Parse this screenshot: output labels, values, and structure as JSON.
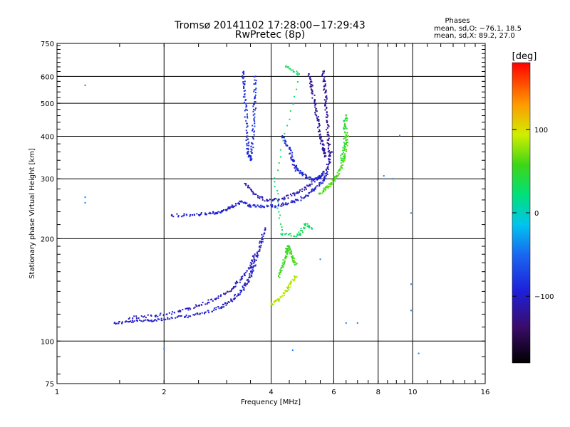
{
  "title_line1": "Tromsø 20141102 17:28:00−17:29:43",
  "title_line2": "RwPretec (8p)",
  "stats": {
    "heading": "Phases",
    "o_line": "mean, sd,O: −76.1, 18.5",
    "x_line": "mean, sd,X:  89.2, 27.0"
  },
  "colorbar": {
    "unit_label": "[deg]",
    "tick_labels": [
      "100",
      "0",
      "−100"
    ],
    "tick_values": [
      100,
      0,
      -100
    ],
    "range": [
      -180,
      180
    ]
  },
  "chart_data": {
    "type": "scatter",
    "xlabel": "Frequency [MHz]",
    "ylabel": "Stationary phase Virtual Height [km]",
    "x_scale": "log",
    "y_scale": "log",
    "xlim": [
      1,
      16
    ],
    "ylim": [
      75,
      750
    ],
    "x_ticks": [
      1,
      2,
      4,
      6,
      8,
      10,
      16
    ],
    "x_tick_labels": [
      "1",
      "2",
      "4",
      "6",
      "8",
      "10",
      "16"
    ],
    "y_ticks": [
      75,
      100,
      200,
      300,
      400,
      500,
      600,
      750
    ],
    "y_tick_labels": [
      "75",
      "100",
      "200",
      "300",
      "400",
      "500",
      "600",
      "750"
    ],
    "grid": true,
    "color_by": "phase [deg]",
    "traces": [
      {
        "points": [
          [
            1.45,
            113
          ],
          [
            1.6,
            114
          ],
          [
            1.8,
            115
          ],
          [
            2.0,
            116
          ],
          [
            2.3,
            118
          ],
          [
            2.6,
            121
          ],
          [
            2.9,
            126
          ],
          [
            3.1,
            132
          ],
          [
            3.3,
            140
          ],
          [
            3.45,
            150
          ],
          [
            3.55,
            162
          ],
          [
            3.65,
            178
          ],
          [
            3.75,
            195
          ],
          [
            3.85,
            215
          ]
        ],
        "phase": -100
      },
      {
        "points": [
          [
            1.6,
            117
          ],
          [
            1.9,
            119
          ],
          [
            2.2,
            122
          ],
          [
            2.5,
            127
          ],
          [
            2.8,
            133
          ],
          [
            3.1,
            142
          ],
          [
            3.3,
            152
          ],
          [
            3.5,
            165
          ],
          [
            3.6,
            180
          ]
        ],
        "phase": -105
      },
      {
        "points": [
          [
            2.1,
            234
          ],
          [
            2.4,
            235
          ],
          [
            2.7,
            237
          ],
          [
            2.9,
            240
          ],
          [
            3.1,
            248
          ],
          [
            3.3,
            258
          ],
          [
            3.5,
            250
          ],
          [
            3.8,
            248
          ],
          [
            4.2,
            250
          ],
          [
            4.6,
            256
          ],
          [
            5.0,
            266
          ],
          [
            5.3,
            280
          ],
          [
            5.6,
            296
          ],
          [
            5.8,
            320
          ]
        ],
        "phase": -95
      },
      {
        "points": [
          [
            3.4,
            290
          ],
          [
            3.6,
            270
          ],
          [
            3.9,
            258
          ],
          [
            4.3,
            262
          ],
          [
            4.7,
            272
          ],
          [
            5.1,
            286
          ],
          [
            5.5,
            305
          ],
          [
            5.8,
            330
          ],
          [
            5.9,
            360
          ]
        ],
        "phase": -110
      },
      {
        "points": [
          [
            3.35,
            620
          ],
          [
            3.35,
            560
          ],
          [
            3.4,
            480
          ],
          [
            3.42,
            400
          ],
          [
            3.45,
            360
          ],
          [
            3.5,
            340
          ],
          [
            3.55,
            380
          ],
          [
            3.58,
            450
          ],
          [
            3.6,
            520
          ],
          [
            3.62,
            600
          ]
        ],
        "phase": -85
      },
      {
        "points": [
          [
            4.3,
            400
          ],
          [
            4.5,
            370
          ],
          [
            4.6,
            340
          ],
          [
            4.7,
            320
          ],
          [
            4.9,
            310
          ],
          [
            5.2,
            300
          ],
          [
            5.4,
            300
          ],
          [
            5.6,
            310
          ]
        ],
        "phase": -92
      },
      {
        "points": [
          [
            5.1,
            610
          ],
          [
            5.2,
            560
          ],
          [
            5.3,
            500
          ],
          [
            5.4,
            450
          ],
          [
            5.5,
            400
          ],
          [
            5.6,
            370
          ],
          [
            5.7,
            350
          ]
        ],
        "phase": -118
      },
      {
        "points": [
          [
            5.6,
            620
          ],
          [
            5.65,
            560
          ],
          [
            5.7,
            500
          ],
          [
            5.75,
            440
          ],
          [
            5.8,
            390
          ],
          [
            5.85,
            350
          ]
        ],
        "phase": -122
      },
      {
        "points": [
          [
            4.2,
            155
          ],
          [
            4.3,
            165
          ],
          [
            4.4,
            178
          ],
          [
            4.45,
            190
          ],
          [
            4.5,
            185
          ],
          [
            4.6,
            175
          ],
          [
            4.7,
            168
          ]
        ],
        "phase": 55
      },
      {
        "points": [
          [
            4.0,
            128
          ],
          [
            4.2,
            132
          ],
          [
            4.4,
            140
          ],
          [
            4.55,
            148
          ],
          [
            4.7,
            155
          ]
        ],
        "phase": 85
      },
      {
        "points": [
          [
            5.5,
            272
          ],
          [
            5.7,
            280
          ],
          [
            5.9,
            290
          ],
          [
            6.1,
            305
          ],
          [
            6.3,
            325
          ],
          [
            6.45,
            350
          ],
          [
            6.5,
            380
          ],
          [
            6.55,
            410
          ]
        ],
        "phase": 60
      },
      {
        "points": [
          [
            6.4,
            420
          ],
          [
            6.5,
            460
          ],
          [
            6.45,
            380
          ],
          [
            6.3,
            340
          ]
        ],
        "phase": 45
      },
      {
        "points": [
          [
            4.4,
            640
          ],
          [
            4.8,
            610
          ],
          [
            4.1,
            300
          ],
          [
            4.3,
            205
          ],
          [
            4.8,
            205
          ],
          [
            5.0,
            220
          ],
          [
            5.2,
            215
          ]
        ],
        "phase": 30
      },
      {
        "points": [
          [
            1.2,
            565
          ],
          [
            1.2,
            265
          ],
          [
            1.2,
            255
          ],
          [
            2.0,
            95
          ],
          [
            4.6,
            94
          ],
          [
            5.5,
            174
          ],
          [
            6.5,
            113
          ],
          [
            7.0,
            113
          ],
          [
            8.3,
            306
          ],
          [
            8.8,
            300
          ],
          [
            9.2,
            402
          ],
          [
            9.9,
            238
          ],
          [
            9.9,
            147
          ],
          [
            9.9,
            123
          ],
          [
            10.4,
            92
          ]
        ],
        "phase": -40
      }
    ]
  }
}
